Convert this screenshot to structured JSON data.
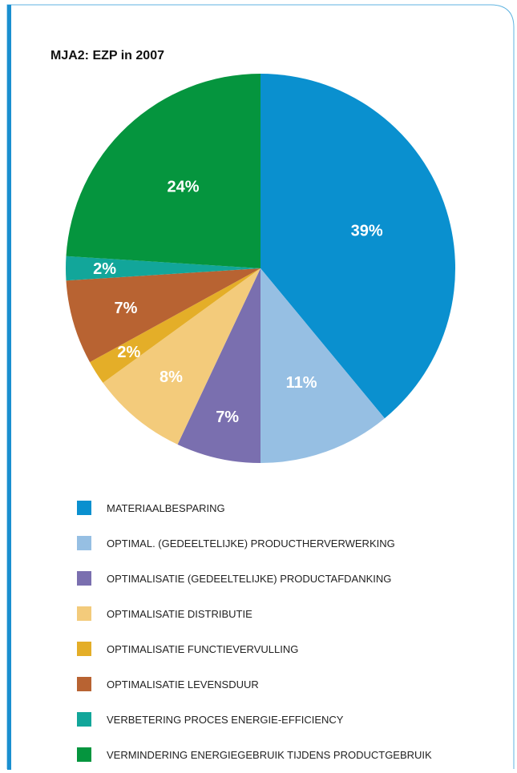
{
  "chart_data": {
    "type": "pie",
    "title": "MJA2: EZP in 2007",
    "slices": [
      {
        "label": "MATERIAALBESPARING",
        "value": 39,
        "display": "39%",
        "color": "#0a90cf"
      },
      {
        "label": "OPTIMAL. (GEDEELTELIJKE) PRODUCTHERVERWERKING",
        "value": 11,
        "display": "11%",
        "color": "#96bfe3"
      },
      {
        "label": "OPTIMALISATIE (GEDEELTELIJKE) PRODUCTAFDANKING",
        "value": 7,
        "display": "7%",
        "color": "#7a6faf"
      },
      {
        "label": "OPTIMALISATIE DISTRIBUTIE",
        "value": 8,
        "display": "8%",
        "color": "#f3cb7b"
      },
      {
        "label": "OPTIMALISATIE FUNCTIEVERVULLING",
        "value": 2,
        "display": "2%",
        "color": "#e4ae28"
      },
      {
        "label": "OPTIMALISATIE LEVENSDUUR",
        "value": 7,
        "display": "7%",
        "color": "#b86332"
      },
      {
        "label": "VERBETERING PROCES ENERGIE-EFFICIENCY",
        "value": 2,
        "display": "2%",
        "color": "#12a69a"
      },
      {
        "label": "VERMINDERING ENERGIEGEBRUIK TIJDENS PRODUCTGEBRUIK",
        "value": 24,
        "display": "24%",
        "color": "#05953e"
      }
    ],
    "start": "12 o'clock",
    "direction": "clockwise",
    "legend_position": "bottom"
  },
  "frame": {
    "border_color": "#1a8fd0"
  }
}
